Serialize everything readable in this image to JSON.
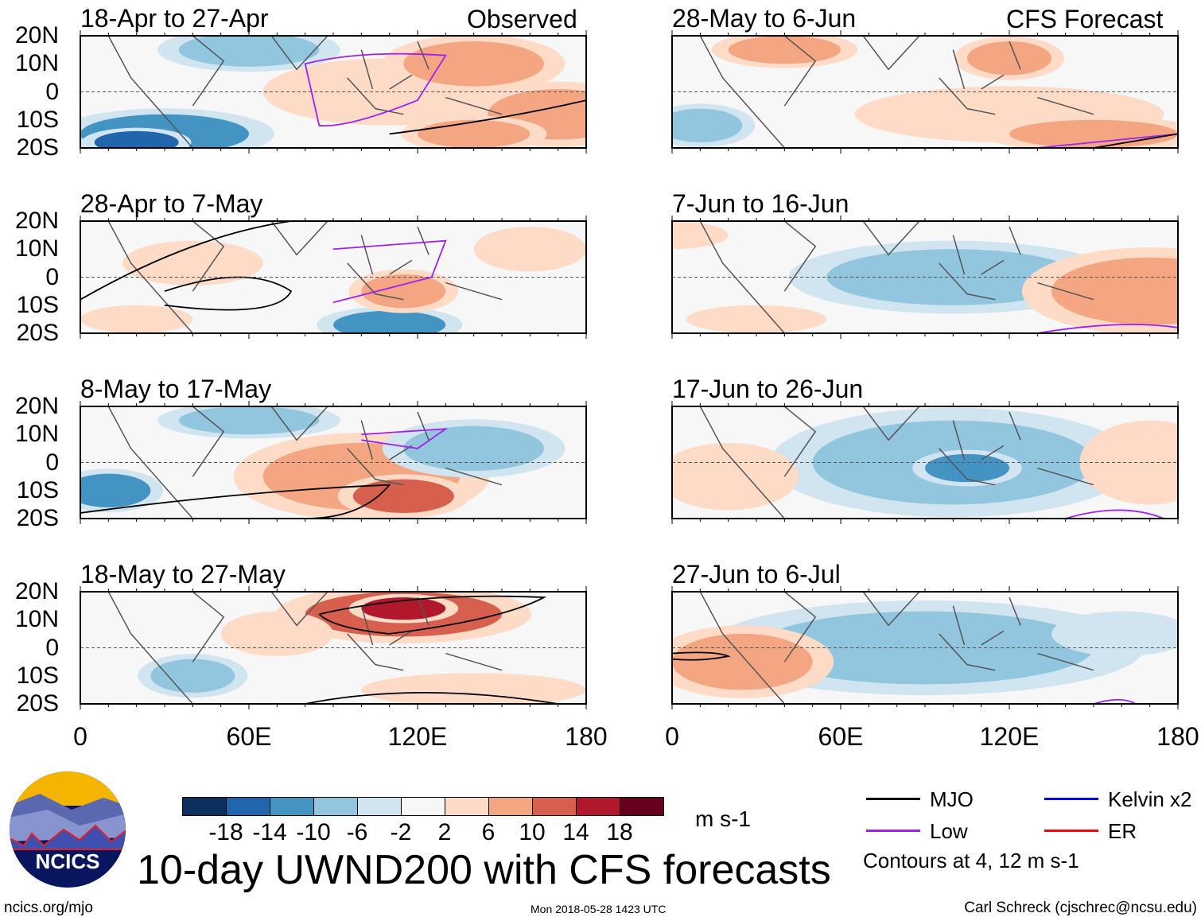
{
  "title": "10-day UWND200 with CFS forecasts",
  "footer": {
    "left": "ncics.org/mjo",
    "center": "Mon 2018-05-28 1423 UTC",
    "right": "Carl Schreck (cjschrec@ncsu.edu)"
  },
  "logo_text": "NCICS",
  "legend": {
    "items": [
      {
        "label": "MJO",
        "color": "#000000"
      },
      {
        "label": "Kelvin x2",
        "color": "#0000ff"
      },
      {
        "label": "Low",
        "color": "#a020f0"
      },
      {
        "label": "ER",
        "color": "#ff0000"
      }
    ],
    "contours_note": "Contours at 4, 12 m s-1"
  },
  "chart_data": {
    "type": "heatmap",
    "variable": "200-hPa zonal wind anomaly",
    "units": "m s-1",
    "colorbar": {
      "ticks": [
        "-18",
        "-14",
        "-10",
        "-6",
        "-2",
        "2",
        "6",
        "10",
        "14",
        "18"
      ],
      "colors": [
        "#0b2f5e",
        "#2166ac",
        "#4393c3",
        "#92c5de",
        "#d1e5f0",
        "#f7f7f7",
        "#fddbc7",
        "#f4a582",
        "#d6604d",
        "#b2182b",
        "#67001f"
      ]
    },
    "lat_ticks": [
      "20N",
      "10N",
      "0",
      "10S",
      "20S"
    ],
    "lon_ticks": [
      "0",
      "60E",
      "120E",
      "180"
    ],
    "columns": [
      {
        "header": "Observed"
      },
      {
        "header": "CFS Forecast"
      }
    ],
    "panels": [
      {
        "title": "18-Apr to 27-Apr",
        "column": 0,
        "row": 0
      },
      {
        "title": "28-Apr to 7-May",
        "column": 0,
        "row": 1
      },
      {
        "title": "8-May to 17-May",
        "column": 0,
        "row": 2
      },
      {
        "title": "18-May to 27-May",
        "column": 0,
        "row": 3
      },
      {
        "title": "28-May to 6-Jun",
        "column": 1,
        "row": 0
      },
      {
        "title": "7-Jun to 16-Jun",
        "column": 1,
        "row": 1
      },
      {
        "title": "17-Jun to 26-Jun",
        "column": 1,
        "row": 2
      },
      {
        "title": "27-Jun to 6-Jul",
        "column": 1,
        "row": 3
      }
    ]
  }
}
